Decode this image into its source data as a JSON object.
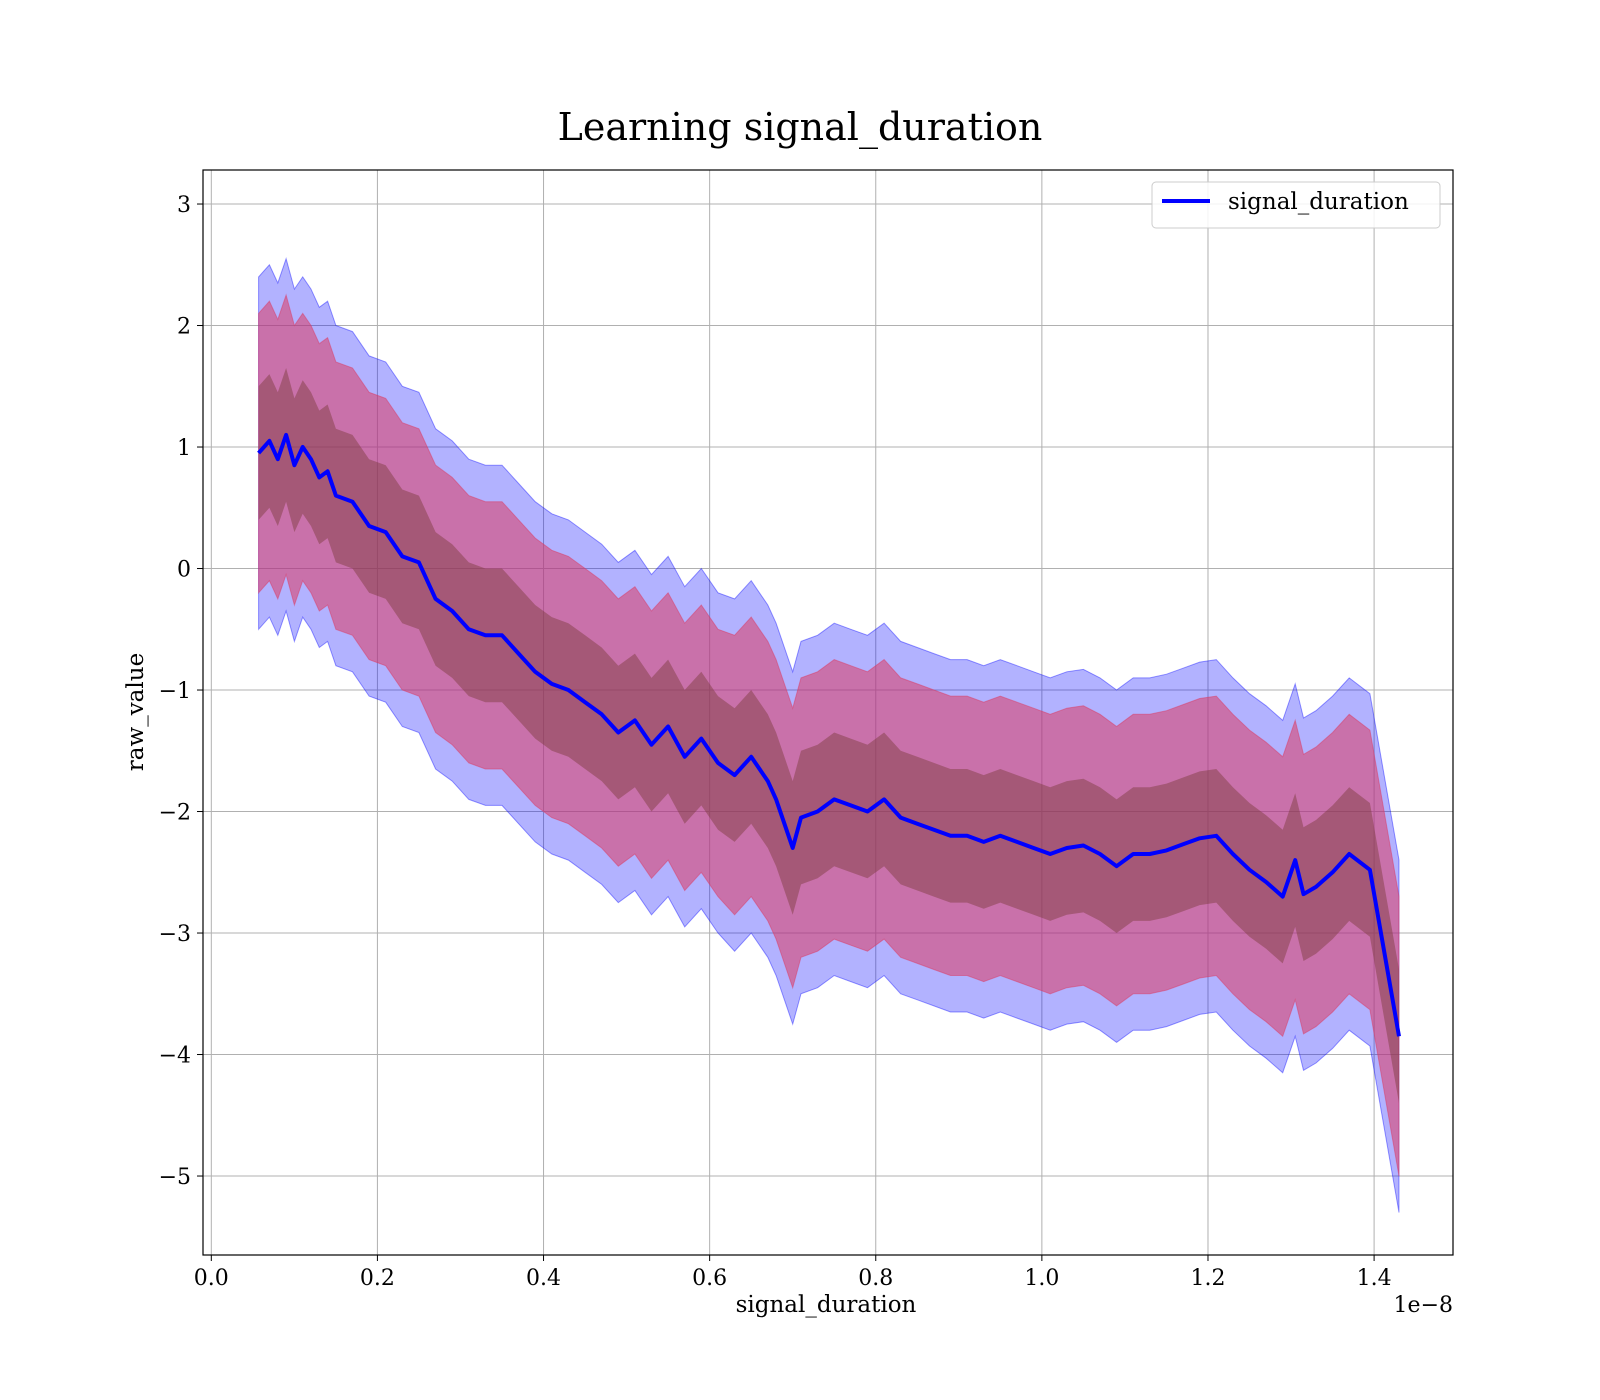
{
  "chart_data": {
    "type": "line",
    "title": "Learning signal_duration",
    "xlabel": "signal_duration",
    "ylabel": "raw_value",
    "x_offset_label": "1e−8",
    "xlim": [
      -0.01,
      1.495
    ],
    "ylim": [
      -5.65,
      3.28
    ],
    "x_ticks": [
      0.0,
      0.2,
      0.4,
      0.6,
      0.8,
      1.0,
      1.2,
      1.4
    ],
    "x_tick_labels": [
      "0.0",
      "0.2",
      "0.4",
      "0.6",
      "0.8",
      "1.0",
      "1.2",
      "1.4"
    ],
    "y_ticks": [
      3,
      2,
      1,
      0,
      -1,
      -2,
      -3,
      -4,
      -5
    ],
    "y_tick_labels": [
      "3",
      "2",
      "1",
      "0",
      "−1",
      "−2",
      "−3",
      "−4",
      "−5"
    ],
    "grid": true,
    "legend_position": "top-right",
    "colors": {
      "line": "#0000ff",
      "outer_band": "#0000ff",
      "middle_band": "#dc3c64",
      "inner_band": "#7a3a3a"
    },
    "series": [
      {
        "name": "signal_duration",
        "x": [
          0.057,
          0.07,
          0.08,
          0.09,
          0.1,
          0.11,
          0.12,
          0.13,
          0.14,
          0.15,
          0.17,
          0.19,
          0.21,
          0.23,
          0.25,
          0.27,
          0.29,
          0.31,
          0.33,
          0.35,
          0.37,
          0.39,
          0.41,
          0.43,
          0.45,
          0.47,
          0.49,
          0.51,
          0.53,
          0.55,
          0.57,
          0.59,
          0.61,
          0.63,
          0.65,
          0.67,
          0.68,
          0.69,
          0.7,
          0.71,
          0.73,
          0.75,
          0.77,
          0.79,
          0.81,
          0.83,
          0.85,
          0.87,
          0.89,
          0.91,
          0.93,
          0.95,
          0.97,
          0.99,
          1.01,
          1.03,
          1.05,
          1.07,
          1.09,
          1.11,
          1.13,
          1.15,
          1.17,
          1.19,
          1.21,
          1.23,
          1.25,
          1.27,
          1.29,
          1.305,
          1.315,
          1.33,
          1.35,
          1.37,
          1.395,
          1.43
        ],
        "values": [
          0.95,
          1.05,
          0.9,
          1.1,
          0.85,
          1.0,
          0.9,
          0.75,
          0.8,
          0.6,
          0.55,
          0.35,
          0.3,
          0.1,
          0.05,
          -0.25,
          -0.35,
          -0.5,
          -0.55,
          -0.55,
          -0.7,
          -0.85,
          -0.95,
          -1.0,
          -1.1,
          -1.2,
          -1.35,
          -1.25,
          -1.45,
          -1.3,
          -1.55,
          -1.4,
          -1.6,
          -1.7,
          -1.55,
          -1.75,
          -1.9,
          -2.1,
          -2.3,
          -2.05,
          -2.0,
          -1.9,
          -1.95,
          -2.0,
          -1.9,
          -2.05,
          -2.1,
          -2.15,
          -2.2,
          -2.2,
          -2.25,
          -2.2,
          -2.25,
          -2.3,
          -2.35,
          -2.3,
          -2.28,
          -2.35,
          -2.45,
          -2.35,
          -2.35,
          -2.32,
          -2.27,
          -2.22,
          -2.2,
          -2.35,
          -2.48,
          -2.58,
          -2.7,
          -2.4,
          -2.68,
          -2.62,
          -2.5,
          -2.35,
          -2.48,
          -3.85
        ]
      }
    ],
    "bands": {
      "outer_halfwidth": [
        1.45,
        1.45,
        1.45,
        1.45,
        1.45,
        1.4,
        1.4,
        1.4,
        1.4,
        1.4,
        1.4,
        1.4,
        1.4,
        1.4,
        1.4,
        1.4,
        1.4,
        1.4,
        1.4,
        1.4,
        1.4,
        1.4,
        1.4,
        1.4,
        1.4,
        1.4,
        1.4,
        1.4,
        1.4,
        1.4,
        1.4,
        1.4,
        1.4,
        1.45,
        1.45,
        1.45,
        1.45,
        1.45,
        1.45,
        1.45,
        1.45,
        1.45,
        1.45,
        1.45,
        1.45,
        1.45,
        1.45,
        1.45,
        1.45,
        1.45,
        1.45,
        1.45,
        1.45,
        1.45,
        1.45,
        1.45,
        1.45,
        1.45,
        1.45,
        1.45,
        1.45,
        1.45,
        1.45,
        1.45,
        1.45,
        1.45,
        1.45,
        1.45,
        1.45,
        1.45,
        1.45,
        1.45,
        1.45,
        1.45,
        1.45,
        1.45
      ],
      "middle_halfwidth": [
        1.15,
        1.15,
        1.15,
        1.15,
        1.15,
        1.1,
        1.1,
        1.1,
        1.1,
        1.1,
        1.1,
        1.1,
        1.1,
        1.1,
        1.1,
        1.1,
        1.1,
        1.1,
        1.1,
        1.1,
        1.1,
        1.1,
        1.1,
        1.1,
        1.1,
        1.1,
        1.1,
        1.1,
        1.1,
        1.1,
        1.1,
        1.1,
        1.1,
        1.15,
        1.15,
        1.15,
        1.15,
        1.15,
        1.15,
        1.15,
        1.15,
        1.15,
        1.15,
        1.15,
        1.15,
        1.15,
        1.15,
        1.15,
        1.15,
        1.15,
        1.15,
        1.15,
        1.15,
        1.15,
        1.15,
        1.15,
        1.15,
        1.15,
        1.15,
        1.15,
        1.15,
        1.15,
        1.15,
        1.15,
        1.15,
        1.15,
        1.15,
        1.15,
        1.15,
        1.15,
        1.15,
        1.15,
        1.15,
        1.15,
        1.15,
        1.15
      ],
      "inner_halfwidth": [
        0.55,
        0.55,
        0.55,
        0.55,
        0.55,
        0.55,
        0.55,
        0.55,
        0.55,
        0.55,
        0.55,
        0.55,
        0.55,
        0.55,
        0.55,
        0.55,
        0.55,
        0.55,
        0.55,
        0.55,
        0.55,
        0.55,
        0.55,
        0.55,
        0.55,
        0.55,
        0.55,
        0.55,
        0.55,
        0.55,
        0.55,
        0.55,
        0.55,
        0.55,
        0.55,
        0.55,
        0.55,
        0.55,
        0.55,
        0.55,
        0.55,
        0.55,
        0.55,
        0.55,
        0.55,
        0.55,
        0.55,
        0.55,
        0.55,
        0.55,
        0.55,
        0.55,
        0.55,
        0.55,
        0.55,
        0.55,
        0.55,
        0.55,
        0.55,
        0.55,
        0.55,
        0.55,
        0.55,
        0.55,
        0.55,
        0.55,
        0.55,
        0.55,
        0.55,
        0.55,
        0.55,
        0.55,
        0.55,
        0.55,
        0.55,
        0.55
      ]
    }
  }
}
